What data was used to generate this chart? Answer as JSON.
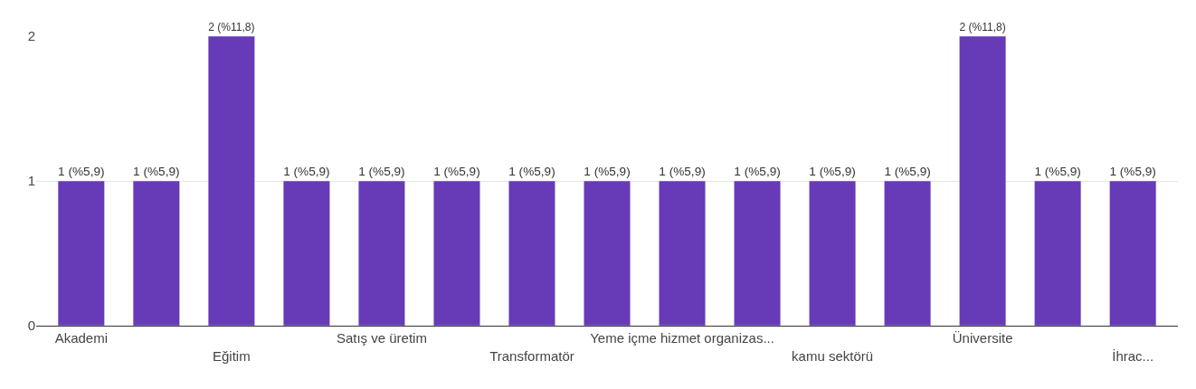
{
  "chart_data": {
    "type": "bar",
    "categories": [
      "Akademi",
      null,
      "Eğitim",
      null,
      "Satış ve üretim",
      null,
      "Transformatör",
      null,
      "Yeme içme hizmet organizas...",
      null,
      "kamu sektörü",
      null,
      "Üniversite",
      null,
      "İhrac..."
    ],
    "values": [
      1,
      1,
      2,
      1,
      1,
      1,
      1,
      1,
      1,
      1,
      1,
      1,
      2,
      1,
      1
    ],
    "value_labels": [
      "1 (%5,9)",
      "1 (%5,9)",
      "2 (%11,8)",
      "1 (%5,9)",
      "1 (%5,9)",
      "1 (%5,9)",
      "1 (%5,9)",
      "1 (%5,9)",
      "1 (%5,9)",
      "1 (%5,9)",
      "1 (%5,9)",
      "1 (%5,9)",
      "2 (%11,8)",
      "1 (%5,9)",
      "1 (%5,9)"
    ],
    "color": "#673ab7",
    "ylim": [
      0,
      2
    ],
    "yticks": [
      0,
      1,
      2
    ],
    "grid": "y",
    "legend": false
  }
}
